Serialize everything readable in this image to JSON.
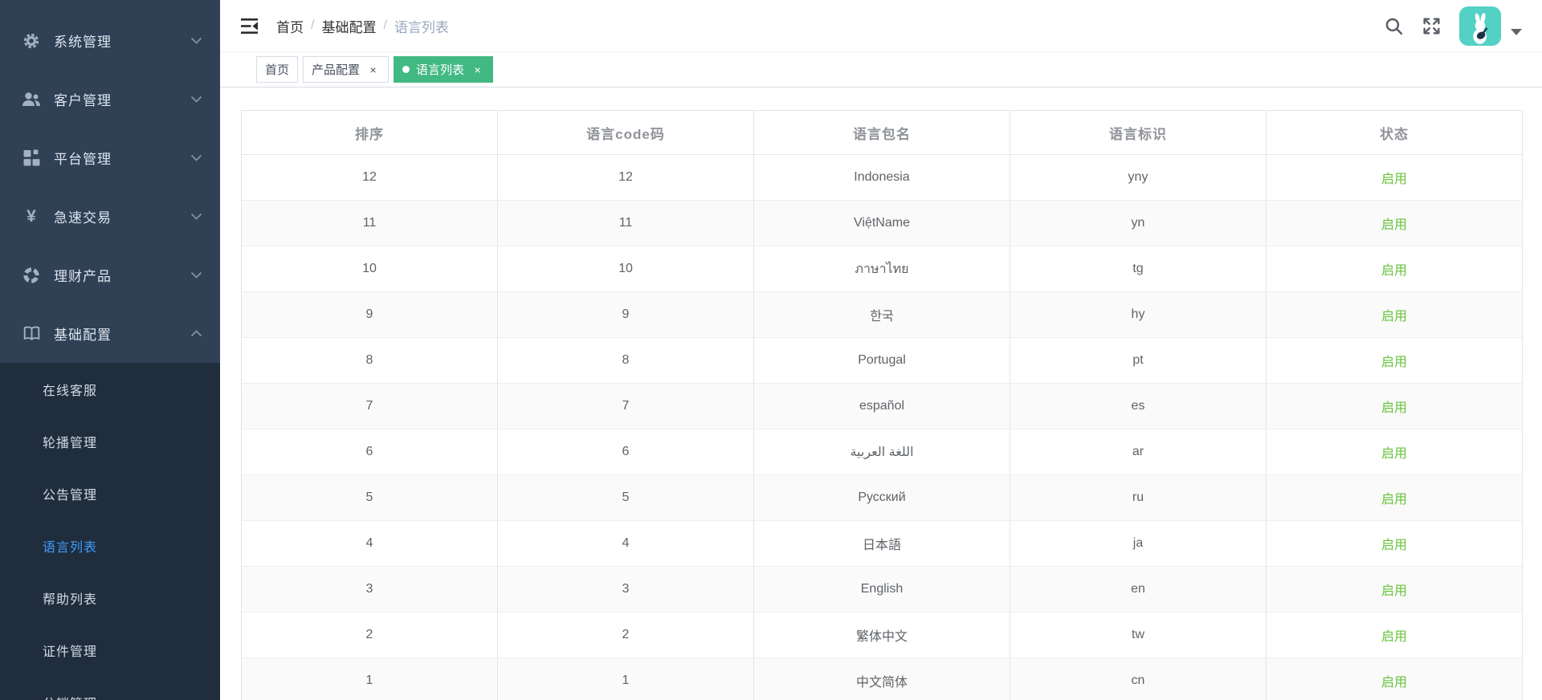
{
  "colors": {
    "sidebar_bg": "#304156",
    "submenu_bg": "#1f2d3d",
    "accent_green": "#42b983",
    "active_blue": "#409eff",
    "status_green": "#67c23a",
    "avatar_teal": "#53d1c5"
  },
  "sidebar": {
    "items": [
      {
        "id": "system",
        "label": "系统管理",
        "icon": "gear-icon"
      },
      {
        "id": "customer",
        "label": "客户管理",
        "icon": "users-icon"
      },
      {
        "id": "platform",
        "label": "平台管理",
        "icon": "grid-icon"
      },
      {
        "id": "express-trade",
        "label": "急速交易",
        "icon": "yen-icon"
      },
      {
        "id": "wealth-products",
        "label": "理财产品",
        "icon": "pie-icon"
      },
      {
        "id": "basic-config",
        "label": "基础配置",
        "icon": "book-icon",
        "expanded": true,
        "submenu": [
          {
            "id": "online-service",
            "label": "在线客服"
          },
          {
            "id": "carousel",
            "label": "轮播管理"
          },
          {
            "id": "announcement",
            "label": "公告管理"
          },
          {
            "id": "language-list",
            "label": "语言列表",
            "active": true
          },
          {
            "id": "help-list",
            "label": "帮助列表"
          },
          {
            "id": "certificate",
            "label": "证件管理"
          },
          {
            "id": "distribution",
            "label": "分销管理"
          }
        ]
      }
    ]
  },
  "navbar": {
    "breadcrumb": [
      "首页",
      "基础配置",
      "语言列表"
    ],
    "separator": "/",
    "menu_toggle_icon": "fold-icon",
    "search_icon": "search-icon",
    "fullscreen_icon": "fullscreen-icon",
    "avatar_icon": "rabbit-avatar-icon",
    "caret_icon": "caret-down-icon"
  },
  "tags_view": {
    "close_glyph": "×",
    "tabs": [
      {
        "label": "首页",
        "active": false,
        "closable": false
      },
      {
        "label": "产品配置",
        "active": false,
        "closable": true
      },
      {
        "label": "语言列表",
        "active": true,
        "closable": true
      }
    ]
  },
  "table": {
    "columns": [
      "排序",
      "语言code码",
      "语言包名",
      "语言标识",
      "状态"
    ],
    "rows": [
      {
        "sort": "12",
        "code": "12",
        "package": "Indonesia",
        "key": "yny",
        "status": "启用"
      },
      {
        "sort": "11",
        "code": "11",
        "package": "ViệtName",
        "key": "yn",
        "status": "启用"
      },
      {
        "sort": "10",
        "code": "10",
        "package": "ภาษาไทย",
        "key": "tg",
        "status": "启用"
      },
      {
        "sort": "9",
        "code": "9",
        "package": "한국",
        "key": "hy",
        "status": "启用"
      },
      {
        "sort": "8",
        "code": "8",
        "package": "Portugal",
        "key": "pt",
        "status": "启用"
      },
      {
        "sort": "7",
        "code": "7",
        "package": "español",
        "key": "es",
        "status": "启用"
      },
      {
        "sort": "6",
        "code": "6",
        "package": "اللغة العربية",
        "key": "ar",
        "status": "启用"
      },
      {
        "sort": "5",
        "code": "5",
        "package": "Русский",
        "key": "ru",
        "status": "启用"
      },
      {
        "sort": "4",
        "code": "4",
        "package": "日本語",
        "key": "ja",
        "status": "启用"
      },
      {
        "sort": "3",
        "code": "3",
        "package": "English",
        "key": "en",
        "status": "启用"
      },
      {
        "sort": "2",
        "code": "2",
        "package": "繁体中文",
        "key": "tw",
        "status": "启用"
      },
      {
        "sort": "1",
        "code": "1",
        "package": "中文简体",
        "key": "cn",
        "status": "启用"
      }
    ]
  }
}
